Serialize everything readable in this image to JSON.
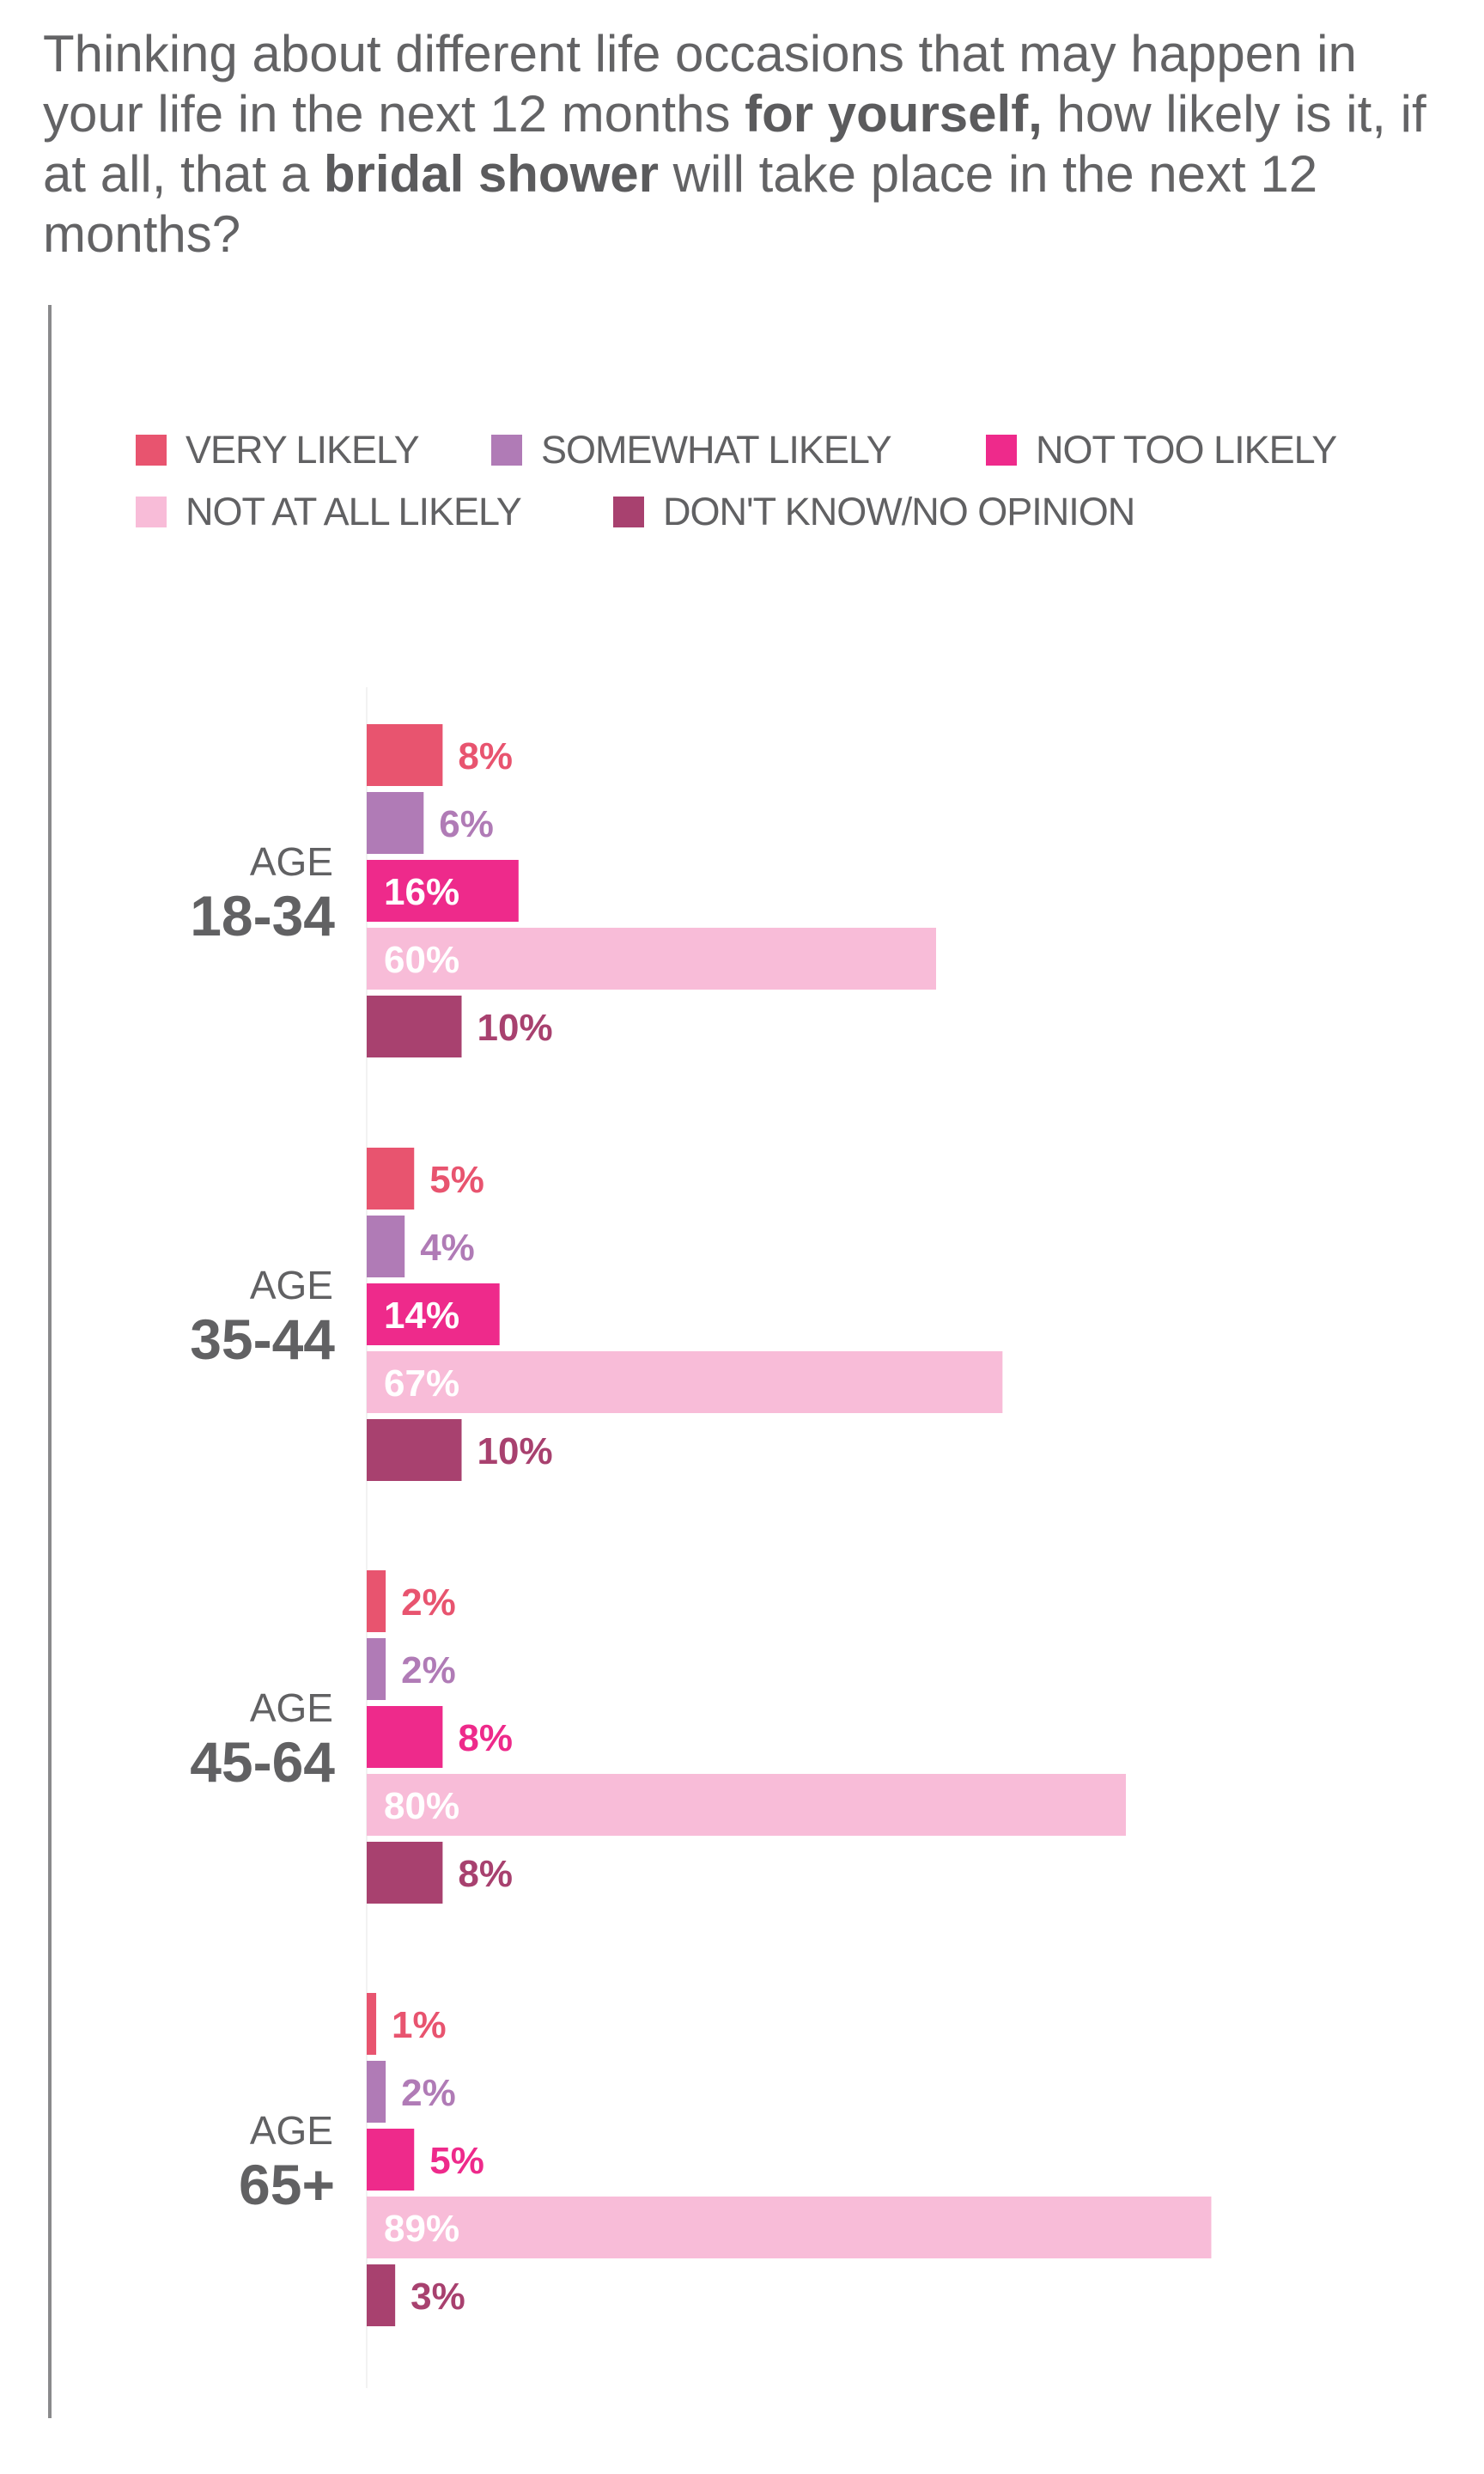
{
  "title": {
    "part1": "Thinking about different life occasions that may happen in your life in the next 12 months ",
    "bold1": "for yourself,",
    "part2": " how likely is it, if at all, that a ",
    "bold2": "bridal shower",
    "part3": " will take place in the next 12 months?"
  },
  "chart_data": {
    "type": "bar",
    "orientation": "horizontal",
    "categories": [
      {
        "prefix": "AGE",
        "range": "18-34"
      },
      {
        "prefix": "AGE",
        "range": "35-44"
      },
      {
        "prefix": "AGE",
        "range": "45-64"
      },
      {
        "prefix": "AGE",
        "range": "65+"
      }
    ],
    "series": [
      {
        "name": "VERY LIKELY",
        "color": "#e8546f",
        "label_color": "#e8546f",
        "values": [
          8,
          5,
          2,
          1
        ]
      },
      {
        "name": "SOMEWHAT LIKELY",
        "color": "#b07bb6",
        "label_color": "#b07bb6",
        "values": [
          6,
          4,
          2,
          2
        ]
      },
      {
        "name": "NOT TOO LIKELY",
        "color": "#ee2a8b",
        "label_color": "#ee2a8b",
        "values": [
          16,
          14,
          8,
          5
        ]
      },
      {
        "name": "NOT AT ALL LIKELY",
        "color": "#f8bcd8",
        "label_color": "#ffffff",
        "values": [
          60,
          67,
          80,
          89
        ]
      },
      {
        "name": "DON'T KNOW/NO OPINION",
        "color": "#a8416f",
        "label_color": "#a8416f",
        "values": [
          10,
          10,
          8,
          3
        ]
      }
    ],
    "value_suffix": "%",
    "xlim": [
      0,
      100
    ],
    "grid": false,
    "legend_position": "top"
  }
}
